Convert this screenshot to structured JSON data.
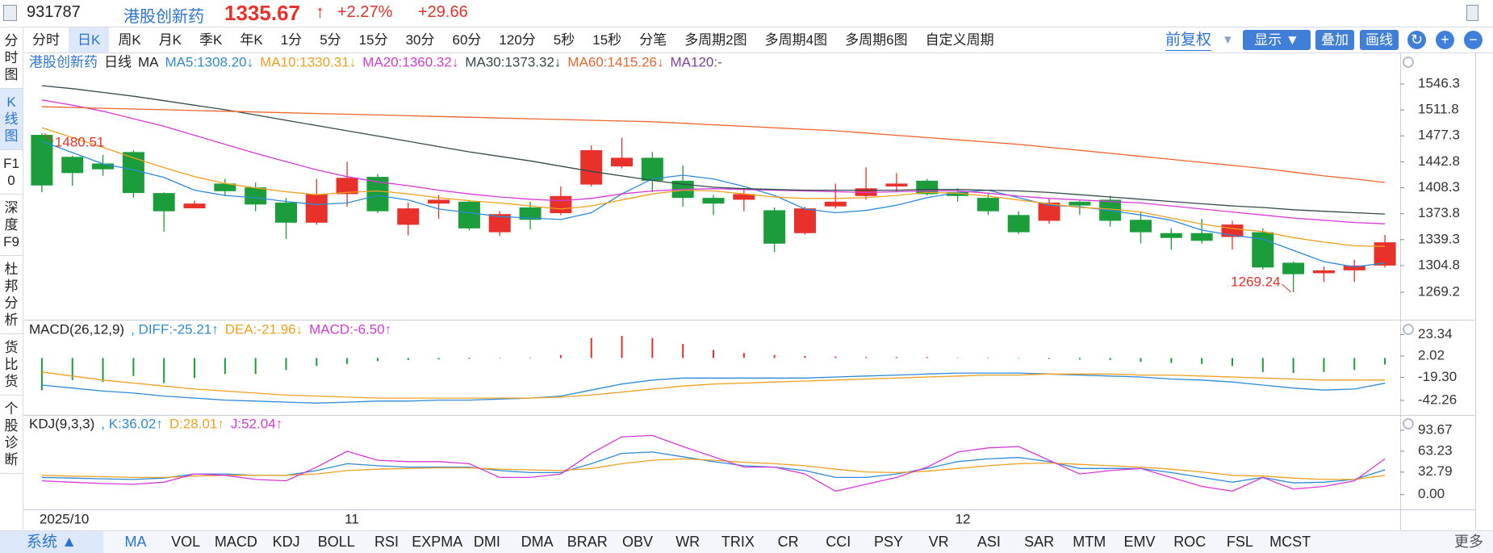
{
  "header": {
    "code": "931787",
    "name": "港股创新药",
    "price": 1335.67,
    "arrow": "↑",
    "change_pct": "+2.27%",
    "change": "+29.66"
  },
  "sidebar": {
    "items": [
      "分时图",
      "K线图",
      "F10",
      "深度F9",
      "杜邦分析",
      "货比货",
      "个股诊断"
    ],
    "active": 1
  },
  "period_tabs": {
    "items": [
      "分时",
      "日K",
      "周K",
      "月K",
      "季K",
      "年K",
      "1分",
      "5分",
      "15分",
      "30分",
      "60分",
      "120分",
      "5秒",
      "15秒",
      "分笔",
      "多周期2图",
      "多周期4图",
      "多周期6图",
      "自定义周期"
    ],
    "active": 1
  },
  "toolbar": {
    "adjust": "前复权",
    "adjust_arrow": "▼",
    "show": "显示 ▼",
    "overlay": "叠加",
    "draw": "画线"
  },
  "indicator_tabs": {
    "system": "系统 ▲",
    "items": [
      "MA",
      "VOL",
      "MACD",
      "KDJ",
      "BOLL",
      "RSI",
      "EXPMA",
      "DMI",
      "DMA",
      "BRAR",
      "OBV",
      "WR",
      "TRIX",
      "CR",
      "CCI",
      "PSY",
      "VR",
      "ASI",
      "SAR",
      "MTM",
      "EMV",
      "ROC",
      "FSL",
      "MCST"
    ],
    "active": 0,
    "more": "更多"
  },
  "chart_data": [
    {
      "type": "candlestick",
      "title": "港股创新药",
      "period": "日线",
      "indicator": "MA",
      "categories": [
        "2025/10",
        null,
        null,
        null,
        null,
        null,
        null,
        null,
        null,
        null,
        "11",
        null,
        null,
        null,
        null,
        null,
        null,
        null,
        null,
        null,
        null,
        null,
        null,
        null,
        null,
        null,
        null,
        null,
        null,
        null,
        "12",
        null,
        null,
        null,
        null,
        null,
        null,
        null,
        null,
        null,
        null,
        null,
        null,
        null,
        null
      ],
      "candles": {
        "up_color": "#e8312a",
        "down_color": "#1a9d3a",
        "open": [
          1478.6,
          1449.3,
          1440.5,
          1455.7,
          1401.2,
          1380.9,
          1413.8,
          1408.7,
          1388.5,
          1361.8,
          1399.8,
          1422.7,
          1359,
          1387.2,
          1389.7,
          1349.1,
          1382.1,
          1374.5,
          1412.5,
          1436.6,
          1448.1,
          1417.6,
          1394.8,
          1392.3,
          1378.3,
          1347.9,
          1383.4,
          1397.3,
          1410,
          1417.6,
          1402.4,
          1394.8,
          1372,
          1364.3,
          1389.7,
          1392.3,
          1365.6,
          1347.9,
          1347.9,
          1342.8,
          1349.1,
          1308.5,
          1294.6,
          1298.4,
          1304.8
        ],
        "close": [
          1411.3,
          1427.8,
          1432.8,
          1401.2,
          1377,
          1387.2,
          1403.7,
          1386,
          1361.8,
          1399.8,
          1421.4,
          1377,
          1380.8,
          1392.3,
          1354.2,
          1373.2,
          1365.6,
          1397.3,
          1458.2,
          1448.1,
          1417.6,
          1394.8,
          1387.2,
          1399.8,
          1333.9,
          1380.8,
          1389.7,
          1407.5,
          1413.8,
          1399.8,
          1397.3,
          1377,
          1349.1,
          1388.5,
          1384.6,
          1364.3,
          1349.1,
          1341.5,
          1337.7,
          1359.3,
          1302.2,
          1293.3,
          1298.4,
          1304.8,
          1335.67
        ],
        "high": [
          1480.51,
          1451,
          1452,
          1458,
          1402,
          1391,
          1420,
          1415,
          1394.8,
          1420,
          1443,
          1426.5,
          1388.5,
          1398.5,
          1392,
          1377,
          1389.7,
          1410,
          1464.5,
          1474.7,
          1455.7,
          1438,
          1398.6,
          1405,
          1382,
          1383,
          1413.8,
          1435.4,
          1427.8,
          1420,
          1407.5,
          1401.2,
          1377,
          1393.5,
          1391,
          1397.3,
          1377,
          1354.2,
          1366.9,
          1364.3,
          1354.2,
          1310,
          1303.5,
          1312.3,
          1345.5
        ],
        "low": [
          1402.4,
          1411,
          1424,
          1395,
          1350,
          1380.9,
          1397,
          1377,
          1340,
          1359,
          1383,
          1374.5,
          1345,
          1367,
          1351.6,
          1344,
          1353,
          1372,
          1410,
          1434,
          1402.4,
          1383,
          1372,
          1377,
          1322.5,
          1346,
          1380.8,
          1392.3,
          1402.4,
          1398,
          1389.7,
          1372,
          1346.6,
          1360.5,
          1372,
          1356.7,
          1334,
          1326,
          1333.9,
          1326,
          1299.6,
          1269.24,
          1283,
          1283,
          1302.2
        ]
      },
      "series": [
        {
          "name": "MA5:1308.20↓",
          "color": "#2e8ad8",
          "values": [
            1470,
            1455,
            1440,
            1432,
            1422,
            1405,
            1398,
            1395,
            1390,
            1386,
            1388,
            1398,
            1392,
            1380,
            1375,
            1370,
            1368,
            1366,
            1375,
            1400,
            1420,
            1425,
            1420,
            1410,
            1398,
            1380,
            1375,
            1378,
            1385,
            1395,
            1402,
            1405,
            1395,
            1385,
            1383,
            1378,
            1372,
            1365,
            1352,
            1345,
            1340,
            1325,
            1310,
            1303,
            1308.2
          ]
        },
        {
          "name": "MA10:1330.31↓",
          "color": "#f0a020",
          "values": [
            1488,
            1475,
            1462,
            1448,
            1435,
            1423,
            1414,
            1408,
            1403,
            1399,
            1402,
            1404,
            1400,
            1395,
            1391,
            1388,
            1384,
            1380,
            1384,
            1392,
            1400,
            1405,
            1404,
            1400,
            1396,
            1394,
            1394,
            1395,
            1398,
            1402,
            1401,
            1397,
            1392,
            1387,
            1382,
            1380,
            1376,
            1368,
            1360,
            1354,
            1350,
            1342,
            1336,
            1331,
            1330.31
          ]
        },
        {
          "name": "MA20:1360.32↓",
          "color": "#d63ad6",
          "values": [
            1525,
            1518,
            1510,
            1500,
            1490,
            1478,
            1466,
            1454,
            1443,
            1432,
            1423,
            1416,
            1411,
            1405,
            1400,
            1396,
            1393,
            1391,
            1394,
            1400,
            1404,
            1406,
            1407,
            1406,
            1405,
            1404,
            1403,
            1402,
            1403,
            1404,
            1404,
            1401,
            1397,
            1394,
            1392,
            1390,
            1388,
            1384,
            1380,
            1376,
            1372,
            1368,
            1365,
            1362,
            1360.32
          ]
        },
        {
          "name": "MA30:1373.32↓",
          "color": "#34494a",
          "values": [
            1544,
            1540,
            1535,
            1530,
            1524,
            1518,
            1512,
            1505,
            1498,
            1491,
            1484,
            1477,
            1470,
            1463,
            1456,
            1450,
            1444,
            1437,
            1430,
            1424,
            1418,
            1413,
            1409,
            1407,
            1406,
            1405,
            1405,
            1405,
            1405,
            1406,
            1406,
            1405,
            1404,
            1402,
            1399,
            1396,
            1393,
            1390,
            1387,
            1384,
            1382,
            1379,
            1377,
            1375,
            1373.32
          ]
        },
        {
          "name": "MA60:1415.26↓",
          "color": "#f0642d",
          "values": [
            1516,
            1515,
            1514,
            1513,
            1512,
            1511,
            1510,
            1509,
            1508,
            1507,
            1506,
            1505,
            1504,
            1503,
            1502,
            1501,
            1500,
            1499,
            1498,
            1497,
            1496,
            1494,
            1492,
            1490,
            1488,
            1486,
            1484,
            1481,
            1478,
            1475,
            1472,
            1469,
            1466,
            1462,
            1458,
            1454,
            1450,
            1446,
            1442,
            1438,
            1434,
            1429,
            1424,
            1420,
            1415.26
          ]
        }
      ],
      "legend_extra": [
        {
          "text": "MA120:-",
          "color": "#7b3fa0"
        }
      ],
      "ylim": [
        1236,
        1586
      ],
      "yticks": [
        1546.3,
        1511.8,
        1477.3,
        1442.8,
        1408.3,
        1373.8,
        1339.3,
        1304.8,
        1269.2
      ]
    },
    {
      "type": "macd",
      "title": "MACD(26,12,9)",
      "series": [
        {
          "name": ", DIFF:-25.21↑",
          "color": "#2e8ad8",
          "values": [
            -27,
            -30,
            -33,
            -35,
            -38,
            -40,
            -42,
            -43,
            -44,
            -45,
            -44,
            -43,
            -43,
            -42,
            -42,
            -41,
            -40,
            -38,
            -32,
            -26,
            -22,
            -20,
            -20,
            -20,
            -20,
            -20,
            -19,
            -18,
            -17,
            -16,
            -15,
            -15,
            -15,
            -16,
            -17,
            -18,
            -19,
            -21,
            -22,
            -24,
            -27,
            -30,
            -32,
            -31,
            -25.21
          ]
        },
        {
          "name": "DEA:-21.96↓",
          "color": "#f0a020",
          "values": [
            -14,
            -18,
            -22,
            -25,
            -28,
            -31,
            -33,
            -35,
            -37,
            -38,
            -39,
            -40,
            -40,
            -40,
            -40,
            -40,
            -40,
            -39,
            -37,
            -34,
            -31,
            -28,
            -26,
            -25,
            -24,
            -23,
            -22,
            -21,
            -20,
            -19,
            -18,
            -17,
            -17,
            -16,
            -16,
            -16,
            -17,
            -17,
            -18,
            -19,
            -20,
            -21,
            -22,
            -22,
            -21.96
          ]
        }
      ],
      "histogram": {
        "name": "MACD:-6.50↑",
        "color": "#d63ad6",
        "up_color": "#e8312a",
        "down_color": "#1a9d3a",
        "values": [
          -32,
          -22,
          -24,
          -18,
          -25,
          -20,
          -16,
          -16,
          -12,
          -8,
          -6,
          -3,
          -2,
          -1.5,
          -1,
          -0.5,
          0.5,
          3,
          20,
          22,
          20,
          14,
          8,
          5,
          3,
          2,
          1.5,
          1,
          1,
          1,
          0.5,
          0.5,
          -0.5,
          -1,
          -1.5,
          -2,
          -4,
          -5,
          -6,
          -8,
          -14,
          -15,
          -14,
          -12,
          -6.5
        ]
      },
      "ylim": [
        -52,
        35
      ],
      "yticks": [
        23.34,
        2.02,
        {
          "value": -19.3,
          "label": "-19.30"
        },
        -42.26
      ]
    },
    {
      "type": "line",
      "title": "KDJ(9,3,3)",
      "series": [
        {
          "name": ", K:36.02↑",
          "color": "#2e8ad8",
          "values": [
            25,
            24,
            23,
            22,
            24,
            30,
            30,
            28,
            28,
            35,
            45,
            42,
            40,
            40,
            40,
            35,
            32,
            32,
            45,
            60,
            62,
            55,
            48,
            42,
            40,
            35,
            25,
            25,
            30,
            38,
            48,
            52,
            54,
            48,
            38,
            38,
            38,
            32,
            25,
            18,
            25,
            17,
            18,
            22,
            36.02
          ]
        },
        {
          "name": "D:28.01↑",
          "color": "#f0a020",
          "values": [
            28,
            27,
            26,
            25,
            25,
            27,
            28,
            28,
            28,
            30,
            35,
            37,
            38,
            39,
            39,
            37,
            36,
            35,
            38,
            45,
            50,
            52,
            50,
            47,
            45,
            42,
            37,
            33,
            32,
            34,
            38,
            42,
            45,
            46,
            44,
            42,
            40,
            37,
            33,
            28,
            27,
            24,
            22,
            22,
            28.01
          ]
        },
        {
          "name": "J:52.04↑",
          "color": "#d63ad6",
          "values": [
            20,
            18,
            16,
            15,
            18,
            30,
            28,
            22,
            20,
            40,
            63,
            50,
            48,
            48,
            45,
            25,
            25,
            30,
            60,
            84,
            86,
            70,
            55,
            40,
            40,
            30,
            5,
            15,
            25,
            40,
            62,
            68,
            70,
            50,
            30,
            35,
            38,
            25,
            12,
            5,
            25,
            8,
            12,
            20,
            52.04
          ]
        }
      ],
      "ylim": [
        -18,
        110
      ],
      "yticks": [
        93.67,
        63.23,
        32.79,
        {
          "value": 0,
          "label": "0.00"
        }
      ]
    }
  ]
}
